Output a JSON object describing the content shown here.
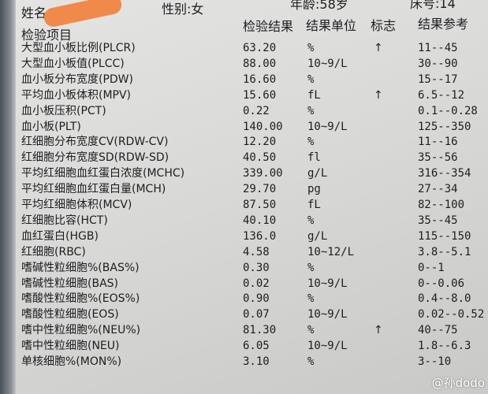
{
  "patient": {
    "name_label": "姓名",
    "gender": "性别:女",
    "age": "年龄:58岁",
    "bed": "床号:14"
  },
  "headers": {
    "item": "检验项目",
    "result": "检验结果",
    "unit": "结果单位",
    "flag": "标志",
    "reference": "结果参考"
  },
  "rows": [
    {
      "name": "大型血小板比例(PLCR)",
      "result": "63.20",
      "unit": "%",
      "flag": "↑",
      "ref": "11--45"
    },
    {
      "name": "大型血小板值(PLCC)",
      "result": "88.00",
      "unit": "10~9/L",
      "flag": "",
      "ref": "30--90"
    },
    {
      "name": "血小板分布宽度(PDW)",
      "result": "16.60",
      "unit": "%",
      "flag": "",
      "ref": "15--17"
    },
    {
      "name": "平均血小板体积(MPV)",
      "result": "15.60",
      "unit": "fL",
      "flag": "↑",
      "ref": "6.5--12"
    },
    {
      "name": "血小板压积(PCT)",
      "result": "0.22",
      "unit": "%",
      "flag": "",
      "ref": "0.1--0.28"
    },
    {
      "name": "血小板(PLT)",
      "result": "140.00",
      "unit": "10~9/L",
      "flag": "",
      "ref": "125--350"
    },
    {
      "name": "红细胞分布宽度CV(RDW-CV)",
      "result": "12.20",
      "unit": "%",
      "flag": "",
      "ref": "11--16"
    },
    {
      "name": "红细胞分布宽度SD(RDW-SD)",
      "result": "40.50",
      "unit": "fl",
      "flag": "",
      "ref": "35--56"
    },
    {
      "name": "平均红细胞血红蛋白浓度(MCHC)",
      "result": "339.00",
      "unit": "g/L",
      "flag": "",
      "ref": "316--354"
    },
    {
      "name": "平均红细胞血红蛋白量(MCH)",
      "result": "29.70",
      "unit": "pg",
      "flag": "",
      "ref": "27--34"
    },
    {
      "name": "平均红细胞体积(MCV)",
      "result": "87.50",
      "unit": "fL",
      "flag": "",
      "ref": "82--100"
    },
    {
      "name": "红细胞比容(HCT)",
      "result": "40.10",
      "unit": "%",
      "flag": "",
      "ref": "35--45"
    },
    {
      "name": "血红蛋白(HGB)",
      "result": "136.0",
      "unit": "g/L",
      "flag": "",
      "ref": "115--150"
    },
    {
      "name": "红细胞(RBC)",
      "result": "4.58",
      "unit": "10~12/L",
      "flag": "",
      "ref": "3.8--5.1"
    },
    {
      "name": "嗜碱性粒细胞%(BAS%)",
      "result": "0.30",
      "unit": "%",
      "flag": "",
      "ref": "0--1"
    },
    {
      "name": "嗜碱性粒细胞(BAS)",
      "result": "0.02",
      "unit": "10~9/L",
      "flag": "",
      "ref": "0--0.06"
    },
    {
      "name": "嗜酸性粒细胞%(EOS%)",
      "result": "0.90",
      "unit": "%",
      "flag": "",
      "ref": "0.4--8.0"
    },
    {
      "name": "嗜酸性粒细胞(EOS)",
      "result": "0.07",
      "unit": "10~9/L",
      "flag": "",
      "ref": "0.02--0.52"
    },
    {
      "name": "嗜中性粒细胞%(NEU%)",
      "result": "81.30",
      "unit": "%",
      "flag": "↑",
      "ref": "40--75"
    },
    {
      "name": "嗜中性粒细胞(NEU)",
      "result": "6.05",
      "unit": "10~9/L",
      "flag": "",
      "ref": "1.8--6.3"
    },
    {
      "name": "单核细胞%(MON%)",
      "result": "3.10",
      "unit": "%",
      "flag": "",
      "ref": "3--10"
    }
  ],
  "watermark": "@孙dodo"
}
